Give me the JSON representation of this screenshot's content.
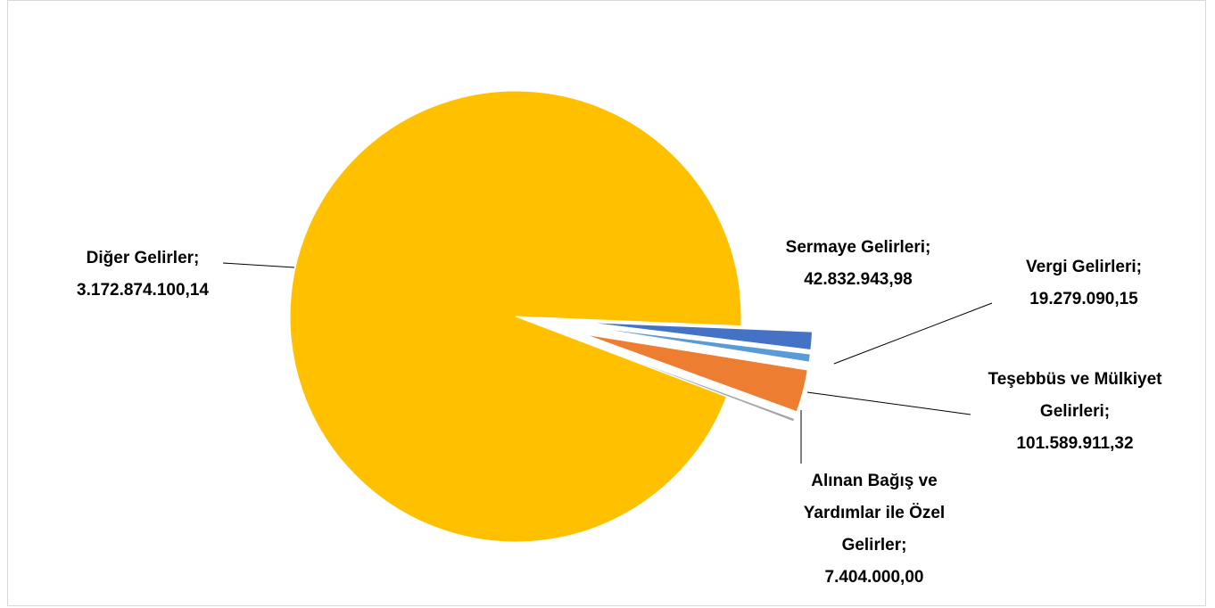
{
  "chart_data": {
    "type": "pie",
    "categories": [
      "Sermaye Gelirleri",
      "Vergi Gelirleri",
      "Teşebbüs ve Mülkiyet Gelirleri",
      "Alınan Bağış ve Yardımlar ile Özel Gelirler",
      "Diğer Gelirler"
    ],
    "values": [
      42832943.98,
      19279090.15,
      101589911.32,
      7404000.0,
      3172874100.14
    ],
    "value_labels": [
      "42.832.943,98",
      "19.279.090,15",
      "101.589.911,32",
      "7.404.000,00",
      "3.172.874.100,14"
    ],
    "label_separator": ";",
    "colors": [
      "#4472C4",
      "#5B9BD5",
      "#ED7D31",
      "#A5A5A5",
      "#FFC000"
    ]
  }
}
